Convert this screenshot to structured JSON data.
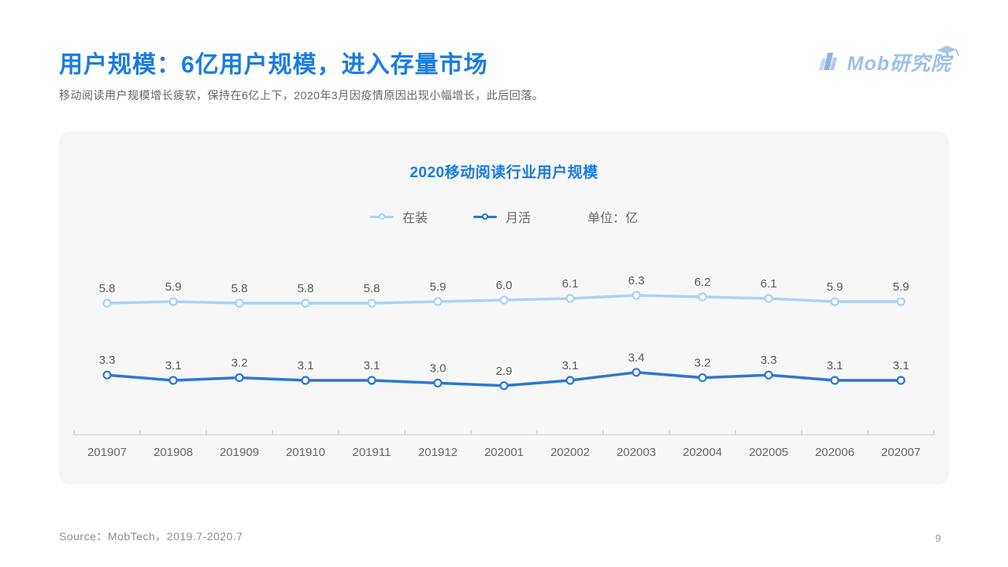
{
  "colors": {
    "accent": "#1a7ce2",
    "logo": "#9cc0e8"
  },
  "header": {
    "title": "用户规模：6亿用户规模，进入存量市场",
    "subtitle": "移动阅读用户规模增长疲软，保持在6亿上下，2020年3月因疫情原因出现小幅增长，此后回落。",
    "logo_text": "Mob研究院"
  },
  "chart_data": {
    "type": "line",
    "title": "2020移动阅读行业用户规模",
    "unit_label": "单位：亿",
    "legend_position": "top",
    "grid": false,
    "y_axis": "hidden",
    "data_labels": true,
    "categories": [
      "201907",
      "201908",
      "201909",
      "201910",
      "201911",
      "201912",
      "202001",
      "202002",
      "202003",
      "202004",
      "202005",
      "202006",
      "202007"
    ],
    "series": [
      {
        "name": "在装",
        "color": "#a8d2f8",
        "values": [
          5.8,
          5.9,
          5.8,
          5.8,
          5.8,
          5.9,
          6.0,
          6.1,
          6.3,
          6.2,
          6.1,
          5.9,
          5.9
        ]
      },
      {
        "name": "月活",
        "color": "#2c77d4",
        "values": [
          3.3,
          3.1,
          3.2,
          3.1,
          3.1,
          3.0,
          2.9,
          3.1,
          3.4,
          3.2,
          3.3,
          3.1,
          3.1
        ]
      }
    ]
  },
  "footer": {
    "source": "Source：MobTech，2019.7-2020.7",
    "page_number": "9"
  }
}
